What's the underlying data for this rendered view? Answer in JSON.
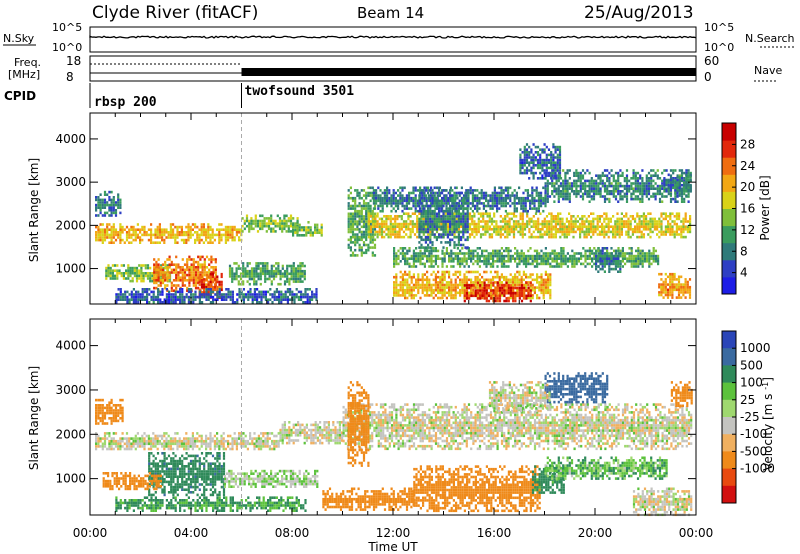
{
  "header": {
    "station": "Clyde River (fitACF)",
    "beam": "Beam 14",
    "date": "25/Aug/2013"
  },
  "strips": {
    "nsky": {
      "label": "N.Sky",
      "ticks": [
        "10^5",
        "10^0"
      ]
    },
    "nsearch": {
      "label": "N.Search",
      "ticks": [
        "10^5",
        "10^0"
      ]
    },
    "freq": {
      "label_line1": "Freq.",
      "label_line2": "[MHz]",
      "ticks": [
        "18",
        "8"
      ]
    },
    "nave": {
      "label": "Nave",
      "ticks": [
        "60",
        "0"
      ]
    },
    "cpid": {
      "label": "CPID",
      "segments": [
        "rbsp 200",
        "twofsound 3501"
      ],
      "switch_hour": 6.0
    }
  },
  "colors": {
    "power": [
      "#1d1de6",
      "#2e3fc4",
      "#2f7a7a",
      "#3a9c5e",
      "#7fbf3a",
      "#d9d218",
      "#f2a714",
      "#ef6d10",
      "#e2280b",
      "#c80000"
    ],
    "velocity": [
      "#2a45b8",
      "#3a6aa0",
      "#2f8a5a",
      "#5cc23c",
      "#9fd86f",
      "#c4c4c0",
      "#c4c4c0",
      "#f0b060",
      "#ef8a1a",
      "#e84a10",
      "#d21010"
    ]
  },
  "chart_data": [
    {
      "type": "heatmap",
      "panel": "power",
      "ylabel": "Slant Range [km]",
      "xlabel": "",
      "x_tick_labels": [
        "00:00",
        "04:00",
        "08:00",
        "12:00",
        "16:00",
        "20:00",
        "00:00"
      ],
      "y_tick_labels": [
        "1000",
        "2000",
        "3000",
        "4000"
      ],
      "ylim": [
        180,
        4600
      ],
      "xlim_hours": [
        0,
        24
      ],
      "colorbar": {
        "label": "Power [dB]",
        "tick_labels": [
          "4",
          "8",
          "12",
          "16",
          "20",
          "24",
          "28"
        ],
        "range": [
          0,
          32
        ]
      },
      "bands": [
        {
          "t": [
            0.2,
            6.0
          ],
          "r": [
            1600,
            2050
          ],
          "v": 20
        },
        {
          "t": [
            0.2,
            1.2
          ],
          "r": [
            2250,
            2800
          ],
          "v": 8
        },
        {
          "t": [
            6.0,
            8.2
          ],
          "r": [
            1850,
            2250
          ],
          "v": 14
        },
        {
          "t": [
            0.6,
            3.2
          ],
          "r": [
            700,
            1100
          ],
          "v": 14
        },
        {
          "t": [
            2.5,
            5.0
          ],
          "r": [
            500,
            1300
          ],
          "v": 23
        },
        {
          "t": [
            4.3,
            5.2
          ],
          "r": [
            350,
            900
          ],
          "v": 26
        },
        {
          "t": [
            5.5,
            8.5
          ],
          "r": [
            650,
            1150
          ],
          "v": 12
        },
        {
          "t": [
            1.0,
            9.0
          ],
          "r": [
            200,
            550
          ],
          "v": 6
        },
        {
          "t": [
            8.0,
            9.2
          ],
          "r": [
            1750,
            2100
          ],
          "v": 14
        },
        {
          "t": [
            10.2,
            11.3
          ],
          "r": [
            1300,
            2900
          ],
          "v": 12
        },
        {
          "t": [
            11.0,
            23.8
          ],
          "r": [
            1700,
            2300
          ],
          "v": 18
        },
        {
          "t": [
            11.2,
            18.0
          ],
          "r": [
            2350,
            2900
          ],
          "v": 8
        },
        {
          "t": [
            18.0,
            23.8
          ],
          "r": [
            2550,
            3300
          ],
          "v": 9
        },
        {
          "t": [
            12.0,
            22.5
          ],
          "r": [
            1050,
            1500
          ],
          "v": 12
        },
        {
          "t": [
            12.0,
            18.2
          ],
          "r": [
            300,
            950
          ],
          "v": 20
        },
        {
          "t": [
            14.8,
            17.5
          ],
          "r": [
            250,
            700
          ],
          "v": 27
        },
        {
          "t": [
            20.0,
            21.0
          ],
          "r": [
            900,
            1500
          ],
          "v": 9
        },
        {
          "t": [
            22.5,
            23.8
          ],
          "r": [
            300,
            900
          ],
          "v": 22
        },
        {
          "t": [
            13.0,
            15.0
          ],
          "r": [
            1500,
            2900
          ],
          "v": 8
        },
        {
          "t": [
            22.7,
            23.8
          ],
          "r": [
            2700,
            3200
          ],
          "v": 8
        },
        {
          "t": [
            17.0,
            18.6
          ],
          "r": [
            3100,
            3900
          ],
          "v": 7
        }
      ]
    },
    {
      "type": "heatmap",
      "panel": "velocity",
      "ylabel": "Slant Range [km]",
      "xlabel": "Time UT",
      "x_tick_labels": [
        "00:00",
        "04:00",
        "08:00",
        "12:00",
        "16:00",
        "20:00",
        "00:00"
      ],
      "y_tick_labels": [
        "1000",
        "2000",
        "3000",
        "4000"
      ],
      "ylim": [
        180,
        4600
      ],
      "xlim_hours": [
        0,
        24
      ],
      "colorbar": {
        "label": "Velocity [m s^-1]",
        "tick_labels": [
          "1000",
          "500",
          "100",
          "25",
          "-25",
          "-100",
          "-500",
          "-1000"
        ],
        "range": [
          -1200,
          1200
        ]
      },
      "bands": [
        {
          "t": [
            0.2,
            1.3
          ],
          "r": [
            2250,
            2800
          ],
          "v": -300
        },
        {
          "t": [
            0.2,
            7.5
          ],
          "r": [
            1650,
            2050
          ],
          "v": 0
        },
        {
          "t": [
            7.5,
            10.0
          ],
          "r": [
            1800,
            2300
          ],
          "v": 0
        },
        {
          "t": [
            10.0,
            23.8
          ],
          "r": [
            1700,
            2700
          ],
          "v": 0
        },
        {
          "t": [
            2.3,
            5.3
          ],
          "r": [
            650,
            1600
          ],
          "v": 450
        },
        {
          "t": [
            0.5,
            2.8
          ],
          "r": [
            750,
            1150
          ],
          "v": -250
        },
        {
          "t": [
            5.3,
            9.0
          ],
          "r": [
            800,
            1200
          ],
          "v": 40
        },
        {
          "t": [
            1.0,
            8.5
          ],
          "r": [
            300,
            600
          ],
          "v": 120
        },
        {
          "t": [
            10.2,
            11.0
          ],
          "r": [
            1300,
            3200
          ],
          "v": -300
        },
        {
          "t": [
            9.2,
            12.8
          ],
          "r": [
            300,
            800
          ],
          "v": -350
        },
        {
          "t": [
            12.8,
            17.8
          ],
          "r": [
            250,
            1300
          ],
          "v": -400
        },
        {
          "t": [
            17.5,
            18.8
          ],
          "r": [
            700,
            1300
          ],
          "v": 150
        },
        {
          "t": [
            18.0,
            22.8
          ],
          "r": [
            1000,
            1500
          ],
          "v": 80
        },
        {
          "t": [
            21.5,
            23.8
          ],
          "r": [
            200,
            800
          ],
          "v": 0
        },
        {
          "t": [
            18.0,
            20.5
          ],
          "r": [
            2700,
            3400
          ],
          "v": 600
        },
        {
          "t": [
            23.0,
            23.8
          ],
          "r": [
            2650,
            3200
          ],
          "v": -350
        },
        {
          "t": [
            15.8,
            18.2
          ],
          "r": [
            2500,
            3200
          ],
          "v": 0
        }
      ]
    }
  ]
}
